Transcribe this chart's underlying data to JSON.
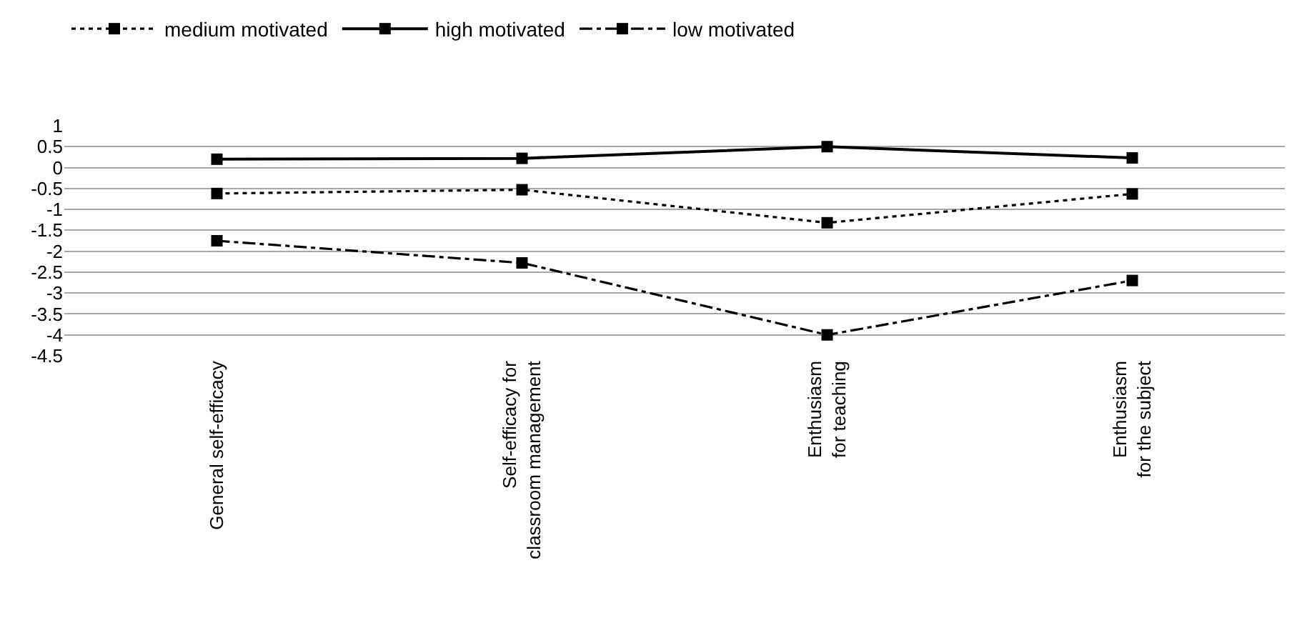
{
  "chart_data": {
    "type": "line",
    "categories": [
      "General self-efficacy",
      "Self-efficacy for\nclassroom management",
      "Enthusiasm\nfor teaching",
      "Enthusiasm\nfor the subject"
    ],
    "series": [
      {
        "name": "medium motivated",
        "color": "#000000",
        "line_style": "dotted",
        "values": [
          -0.62,
          -0.53,
          -1.32,
          -0.63
        ]
      },
      {
        "name": "high motivated",
        "color": "#000000",
        "line_style": "solid",
        "values": [
          0.2,
          0.22,
          0.5,
          0.23
        ]
      },
      {
        "name": "low motivated",
        "color": "#000000",
        "line_style": "dashdot",
        "values": [
          -1.75,
          -2.28,
          -4.0,
          -2.7
        ]
      }
    ],
    "ylim": [
      -4.5,
      1
    ],
    "yticks": [
      -4.5,
      -4,
      -3.5,
      -3,
      -2.5,
      -2,
      -1.5,
      -1,
      -0.5,
      0,
      0.5,
      1
    ],
    "grid": "y",
    "legend": "top",
    "marker": "square"
  }
}
